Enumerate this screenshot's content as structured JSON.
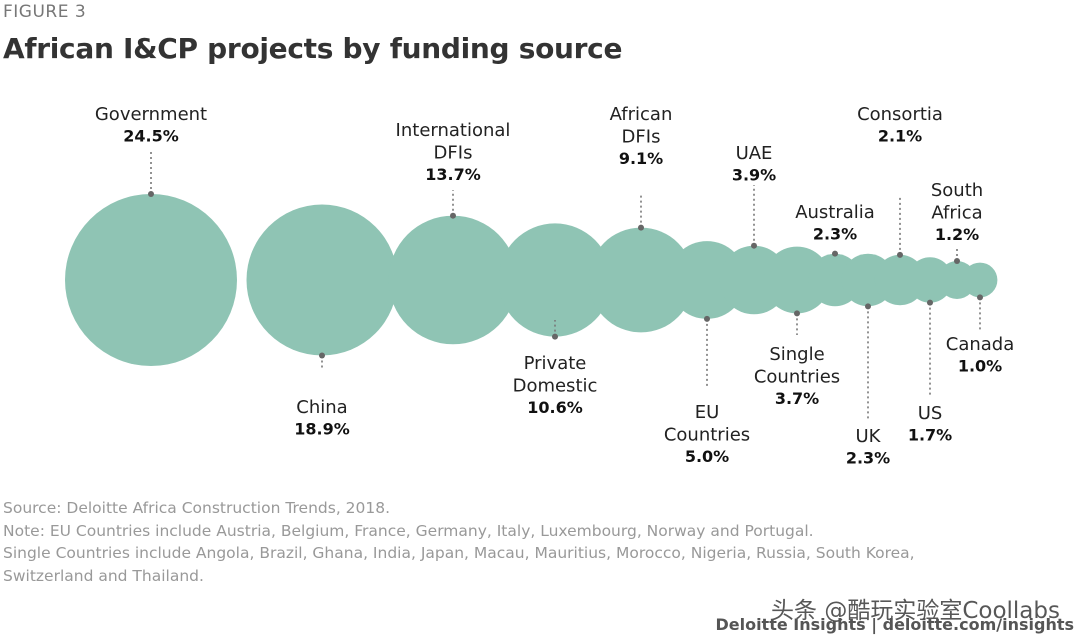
{
  "figure_label": "FIGURE 3",
  "chart_data": {
    "type": "bubble",
    "title": "African I&CP projects by funding source",
    "unit": "%",
    "categories": [
      "Government",
      "China",
      "International DFIs",
      "Private Domestic",
      "African DFIs",
      "EU Countries",
      "UAE",
      "Single Countries",
      "Australia",
      "UK",
      "Consortia",
      "US",
      "South Africa",
      "Canada"
    ],
    "values": [
      24.5,
      18.9,
      13.7,
      10.6,
      9.1,
      5.0,
      3.9,
      3.7,
      2.3,
      2.3,
      2.1,
      1.7,
      1.2,
      1.0
    ],
    "points": [
      {
        "name": "Government",
        "lines": [
          "Government"
        ],
        "value": 24.5,
        "label": "24.5%",
        "label_side": "above"
      },
      {
        "name": "China",
        "lines": [
          "China"
        ],
        "value": 18.9,
        "label": "18.9%",
        "label_side": "below"
      },
      {
        "name": "International DFIs",
        "lines": [
          "International",
          "DFIs"
        ],
        "value": 13.7,
        "label": "13.7%",
        "label_side": "above"
      },
      {
        "name": "Private Domestic",
        "lines": [
          "Private",
          "Domestic"
        ],
        "value": 10.6,
        "label": "10.6%",
        "label_side": "below"
      },
      {
        "name": "African DFIs",
        "lines": [
          "African",
          "DFIs"
        ],
        "value": 9.1,
        "label": "9.1%",
        "label_side": "above"
      },
      {
        "name": "EU Countries",
        "lines": [
          "EU",
          "Countries"
        ],
        "value": 5.0,
        "label": "5.0%",
        "label_side": "below"
      },
      {
        "name": "UAE",
        "lines": [
          "UAE"
        ],
        "value": 3.9,
        "label": "3.9%",
        "label_side": "above"
      },
      {
        "name": "Single Countries",
        "lines": [
          "Single",
          "Countries"
        ],
        "value": 3.7,
        "label": "3.7%",
        "label_side": "below"
      },
      {
        "name": "Australia",
        "lines": [
          "Australia"
        ],
        "value": 2.3,
        "label": "2.3%",
        "label_side": "above"
      },
      {
        "name": "UK",
        "lines": [
          "UK"
        ],
        "value": 2.3,
        "label": "2.3%",
        "label_side": "below"
      },
      {
        "name": "Consortia",
        "lines": [
          "Consortia"
        ],
        "value": 2.1,
        "label": "2.1%",
        "label_side": "above"
      },
      {
        "name": "US",
        "lines": [
          "US"
        ],
        "value": 1.7,
        "label": "1.7%",
        "label_side": "below"
      },
      {
        "name": "South Africa",
        "lines": [
          "South",
          "Africa"
        ],
        "value": 1.2,
        "label": "1.2%",
        "label_side": "above"
      },
      {
        "name": "Canada",
        "lines": [
          "Canada"
        ],
        "value": 1.0,
        "label": "1.0%",
        "label_side": "below"
      }
    ],
    "colors": {
      "bubble": "#8fc4b4",
      "dot": "#666666",
      "leader": "#777777"
    }
  },
  "notes": {
    "source": "Source: Deloitte Africa Construction Trends, 2018.",
    "note_1": "Note: EU Countries include Austria, Belgium, France, Germany, Italy, Luxembourg, Norway and Portugal.",
    "note_2": "Single Countries include Angola, Brazil, Ghana, India, Japan, Macau, Mauritius, Morocco, Nigeria, Russia, South Korea,",
    "note_3": "Switzerland and Thailand."
  },
  "watermark": "头条 @酷玩实验室Coollabs",
  "footer": "Deloitte Insights | deloitte.com/insights"
}
